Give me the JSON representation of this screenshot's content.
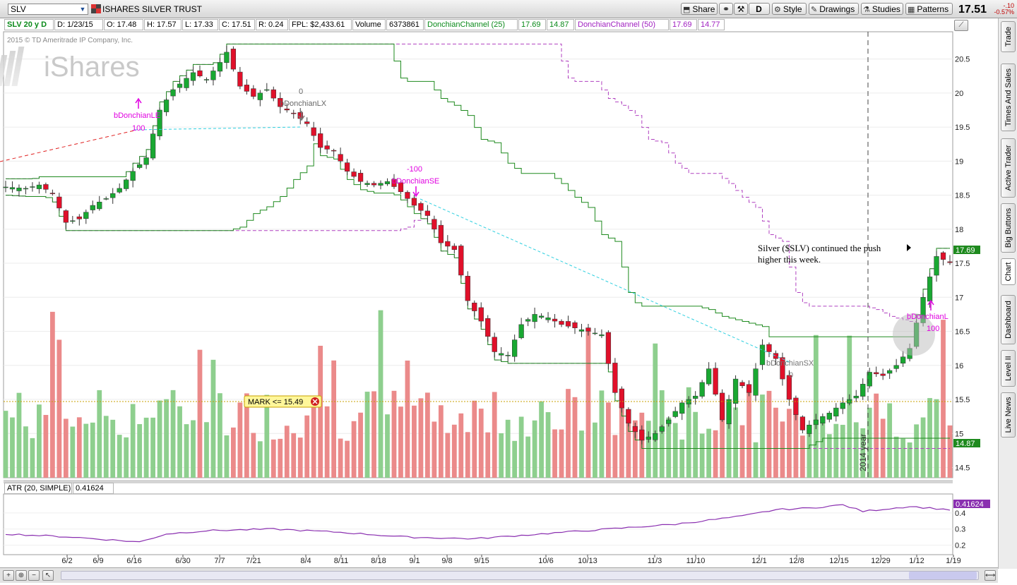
{
  "toolbar": {
    "symbol": "SLV",
    "title": "ISHARES SILVER TRUST",
    "share": "Share",
    "period_letter": "D",
    "style": "Style",
    "drawings": "Drawings",
    "studies": "Studies",
    "patterns": "Patterns",
    "last_price": "17.51",
    "change": "-.10",
    "change_pct": "-0.57%"
  },
  "stats": {
    "symbol_period": "SLV 20 y D",
    "date": "D: 1/23/15",
    "open": "O: 17.48",
    "high": "H: 17.57",
    "low": "L: 17.33",
    "close": "C: 17.51",
    "range": "R: 0.24",
    "fpl": "FPL: $2,433.61",
    "volume_label": "Volume",
    "volume_value": "6373861",
    "dc25_label": "DonchianChannel (25)",
    "dc25_upper": "17.69",
    "dc25_lower": "14.87",
    "dc50_label": "DonchianChannel (50)",
    "dc50_upper": "17.69",
    "dc50_lower": "14.77"
  },
  "chart_area": {
    "copyright": "2015 © TD Ameritrade IP Company, Inc.",
    "watermark": "iShares",
    "annotation_line1": "Silver ($SLV) continued the push",
    "annotation_line2": "higher this week.",
    "mark_label": "MARK <= 15.49",
    "year_label": "2014 year",
    "signals": {
      "le_label": "bDonchianLE",
      "le_qty": "100",
      "lx_label": "bDonchianLX",
      "lx_qty": "0",
      "se_label": "bDonchianSE",
      "se_qty": "-100",
      "sx_label": "bDonchianSX",
      "sx_qty": "0",
      "le2_label": "bDonchianL",
      "le2_qty": "100"
    },
    "tags": {
      "upper": "17.69",
      "lower": "14.87",
      "atr": "0.41624"
    }
  },
  "atr": {
    "label": "ATR (20, SIMPLE)",
    "value": "0.41624"
  },
  "side_tabs": [
    "Trade",
    "Times And Sales",
    "Active Trader",
    "Big Buttons",
    "Chart",
    "Dashboard",
    "Level II",
    "Live News"
  ],
  "colors": {
    "up_candle": "#19a832",
    "down_candle": "#e0102a",
    "up_volume": "#8ecf8e",
    "down_volume": "#eb8a8a",
    "dc25": "#1e8a1e",
    "dc50": "#b040c0",
    "signal": "#e000e0",
    "atr_line": "#8a2fb0",
    "trendline": "#30d0e0"
  },
  "chart_data": {
    "type": "candlestick",
    "ylim": [
      14.35,
      20.9
    ],
    "y_ticks": [
      "20.5",
      "20",
      "19.5",
      "19",
      "18.5",
      "18",
      "17.5",
      "17",
      "16.5",
      "16",
      "15.5",
      "15",
      "14.5"
    ],
    "x_ticks": [
      "6/2",
      "6/9",
      "6/16",
      "6/30",
      "7/7",
      "7/21",
      "8/4",
      "8/11",
      "8/18",
      "9/1",
      "9/8",
      "9/15",
      "10/6",
      "10/13",
      "11/3",
      "11/10",
      "12/1",
      "12/8",
      "12/15",
      "12/29",
      "1/12",
      "1/19"
    ],
    "close_path": [
      [
        0,
        18.62
      ],
      [
        3,
        18.6
      ],
      [
        5,
        18.65
      ],
      [
        7,
        18.52
      ],
      [
        9,
        18.1
      ],
      [
        11,
        18.15
      ],
      [
        13,
        18.35
      ],
      [
        15,
        18.45
      ],
      [
        17,
        18.6
      ],
      [
        19,
        18.85
      ],
      [
        21,
        19.05
      ],
      [
        23,
        19.75
      ],
      [
        25,
        20.05
      ],
      [
        28,
        20.3
      ],
      [
        30,
        20.2
      ],
      [
        32,
        20.45
      ],
      [
        33,
        20.6
      ],
      [
        35,
        20.1
      ],
      [
        37,
        19.95
      ],
      [
        39,
        20.05
      ],
      [
        41,
        19.8
      ],
      [
        43,
        19.7
      ],
      [
        45,
        19.55
      ],
      [
        47,
        19.2
      ],
      [
        49,
        19.15
      ],
      [
        51,
        18.85
      ],
      [
        53,
        18.7
      ],
      [
        55,
        18.65
      ],
      [
        57,
        18.7
      ],
      [
        59,
        18.55
      ],
      [
        61,
        18.35
      ],
      [
        63,
        18.2
      ],
      [
        65,
        17.8
      ],
      [
        67,
        17.7
      ],
      [
        69,
        16.95
      ],
      [
        71,
        16.65
      ],
      [
        73,
        16.2
      ],
      [
        75,
        16.15
      ],
      [
        77,
        16.6
      ],
      [
        79,
        16.75
      ],
      [
        81,
        16.7
      ],
      [
        83,
        16.6
      ],
      [
        85,
        16.55
      ],
      [
        87,
        16.5
      ],
      [
        89,
        16.45
      ],
      [
        91,
        15.6
      ],
      [
        93,
        15.15
      ],
      [
        95,
        14.9
      ],
      [
        97,
        15.0
      ],
      [
        99,
        15.2
      ],
      [
        101,
        15.45
      ],
      [
        103,
        15.55
      ],
      [
        105,
        15.95
      ],
      [
        107,
        15.2
      ],
      [
        109,
        15.8
      ],
      [
        111,
        15.6
      ],
      [
        113,
        16.3
      ],
      [
        115,
        16.1
      ],
      [
        117,
        15.5
      ],
      [
        119,
        15.05
      ],
      [
        121,
        15.2
      ],
      [
        123,
        15.3
      ],
      [
        125,
        15.45
      ],
      [
        127,
        15.55
      ],
      [
        129,
        15.9
      ],
      [
        131,
        15.85
      ],
      [
        133,
        16.0
      ],
      [
        135,
        16.25
      ],
      [
        137,
        17.0
      ],
      [
        139,
        17.6
      ],
      [
        141,
        17.51
      ]
    ],
    "volume_shares": "6373861",
    "atr_ylim": [
      0.15,
      0.5
    ],
    "atr_ticks": [
      "0.2",
      "0.3",
      "0.4"
    ],
    "atr_path": [
      [
        0,
        0.27
      ],
      [
        10,
        0.25
      ],
      [
        20,
        0.22
      ],
      [
        24,
        0.27
      ],
      [
        30,
        0.29
      ],
      [
        40,
        0.3
      ],
      [
        50,
        0.28
      ],
      [
        60,
        0.25
      ],
      [
        70,
        0.24
      ],
      [
        80,
        0.27
      ],
      [
        90,
        0.3
      ],
      [
        100,
        0.33
      ],
      [
        110,
        0.38
      ],
      [
        115,
        0.42
      ],
      [
        120,
        0.43
      ],
      [
        125,
        0.45
      ],
      [
        128,
        0.41
      ],
      [
        135,
        0.44
      ],
      [
        141,
        0.42
      ]
    ]
  }
}
